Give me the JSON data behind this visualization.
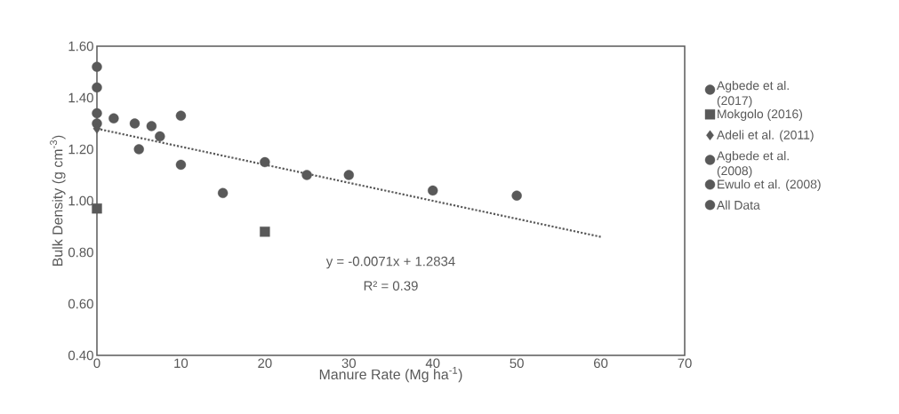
{
  "chart_data": {
    "type": "scatter",
    "xlabel": "Manure Rate (Mg ha$^{-1}$)",
    "ylabel": "Bulk Density (g cm$^{-3}$)",
    "xlim": [
      0,
      70
    ],
    "ylim": [
      0.4,
      1.6
    ],
    "xticks": [
      0,
      10,
      20,
      30,
      40,
      50,
      60,
      70
    ],
    "yticks": [
      {
        "value": 0.4,
        "label": "0.40"
      },
      {
        "value": 0.6,
        "label": "0.60"
      },
      {
        "value": 0.8,
        "label": "0.80"
      },
      {
        "value": 1.0,
        "label": "1.00"
      },
      {
        "value": 1.2,
        "label": "1.20"
      },
      {
        "value": 1.4,
        "label": "1.40"
      },
      {
        "value": 1.6,
        "label": "1.60"
      }
    ],
    "legend": "right",
    "grid": false,
    "annotations": [
      "y = -0.0071x + 1.2834",
      "R² = 0.39"
    ],
    "series": [
      {
        "name": "Agbede et al. (2017)",
        "color": "#595959",
        "marker": "circle",
        "x": [
          0,
          0,
          0,
          0,
          2,
          4.5,
          5,
          6.5,
          7.5,
          10,
          10
        ],
        "values": [
          1.52,
          1.44,
          1.34,
          1.3,
          1.32,
          1.3,
          1.2,
          1.29,
          1.25,
          1.33,
          1.14
        ]
      },
      {
        "name": "Mokgolo (2016)",
        "color": "#595959",
        "marker": "square",
        "x": [
          0,
          20
        ],
        "values": [
          0.97,
          0.88
        ]
      },
      {
        "name": "Adeli et al. (2011)",
        "color": "#595959",
        "marker": "diamond",
        "x": [
          0
        ],
        "values": [
          1.28
        ]
      },
      {
        "name": "Agbede et al. (2008)",
        "color": "#595959",
        "marker": "circle",
        "x": [
          15,
          20,
          25,
          30,
          40,
          50
        ],
        "values": [
          1.03,
          1.15,
          1.1,
          1.1,
          1.04,
          1.02
        ]
      },
      {
        "name": "Ewulo et al. (2008)",
        "color": "#595959",
        "marker": "circle"
      },
      {
        "name": "All Data",
        "color": "#595959",
        "marker": "circle"
      },
      {
        "type": "line",
        "color": "#595959",
        "line_style": "dotted",
        "marker": "none",
        "x": [
          0,
          60
        ],
        "values": [
          1.28,
          0.86
        ]
      }
    ]
  }
}
